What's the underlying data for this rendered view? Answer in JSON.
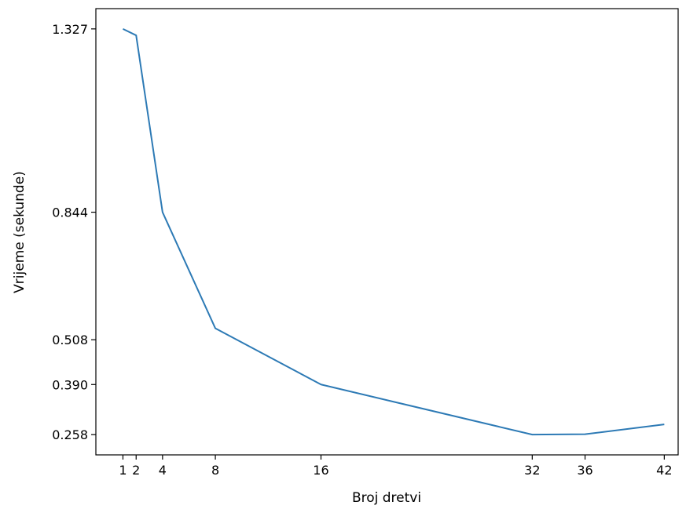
{
  "chart_data": {
    "type": "line",
    "title": "",
    "xlabel": "Broj dretvi",
    "ylabel": "Vrijeme (sekunde)",
    "x": [
      1,
      2,
      4,
      8,
      16,
      32,
      36,
      42
    ],
    "series": [
      {
        "values": [
          1.327,
          1.31,
          0.844,
          0.538,
          0.39,
          0.258,
          0.259,
          0.285
        ],
        "color": "#2d7ab5"
      }
    ],
    "x_ticks": [
      1,
      2,
      4,
      8,
      16,
      32,
      36,
      42
    ],
    "x_tick_labels": [
      "1",
      "2",
      "4",
      "8",
      "16",
      "32",
      "36",
      "42"
    ],
    "y_ticks": [
      1.327,
      0.844,
      0.508,
      0.39,
      0.258
    ],
    "y_tick_labels": [
      "1.327",
      "0.844",
      "0.508",
      "0.390",
      "0.258"
    ],
    "xlim": [
      -1.05,
      43.05
    ],
    "ylim": [
      0.2046,
      1.3804
    ],
    "grid": false,
    "legend": "none"
  }
}
